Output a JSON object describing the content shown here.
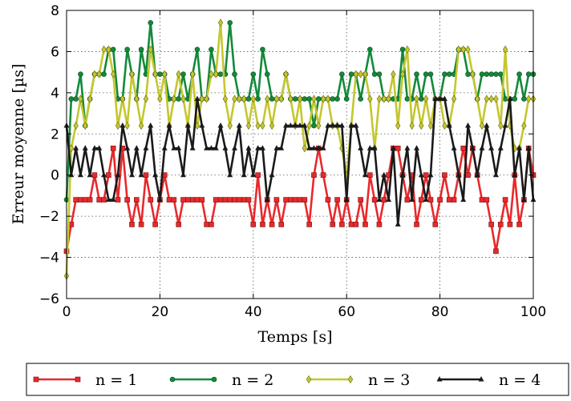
{
  "chart_data": {
    "type": "line",
    "xlabel": "Temps [s]",
    "ylabel": "Erreur moyenne [µs]",
    "xlim": [
      0,
      100
    ],
    "ylim": [
      -6,
      8
    ],
    "xticks": [
      0,
      20,
      40,
      60,
      80,
      100
    ],
    "yticks": [
      -6,
      -4,
      -2,
      0,
      2,
      4,
      6,
      8
    ],
    "xtick_labels": [
      "0",
      "20",
      "40",
      "60",
      "80",
      "100"
    ],
    "ytick_labels": [
      "−6",
      "−4",
      "−2",
      "0",
      "2",
      "4",
      "6",
      "8"
    ],
    "grid": true,
    "legend_position": "bottom",
    "x": [
      0,
      1,
      2,
      3,
      4,
      5,
      6,
      7,
      8,
      9,
      10,
      11,
      12,
      13,
      14,
      15,
      16,
      17,
      18,
      19,
      20,
      21,
      22,
      23,
      24,
      25,
      26,
      27,
      28,
      29,
      30,
      31,
      32,
      33,
      34,
      35,
      36,
      37,
      38,
      39,
      40,
      41,
      42,
      43,
      44,
      45,
      46,
      47,
      48,
      49,
      50,
      51,
      52,
      53,
      54,
      55,
      56,
      57,
      58,
      59,
      60,
      61,
      62,
      63,
      64,
      65,
      66,
      67,
      68,
      69,
      70,
      71,
      72,
      73,
      74,
      75,
      76,
      77,
      78,
      79,
      80,
      81,
      82,
      83,
      84,
      85,
      86,
      87,
      88,
      89,
      90,
      91,
      92,
      93,
      94,
      95,
      96,
      97,
      98,
      99,
      100
    ],
    "series": [
      {
        "name": "n = 1",
        "color": "#e8292b",
        "marker": "square",
        "values": [
          -3.7,
          -2.4,
          -1.2,
          -1.2,
          -1.2,
          -1.2,
          0,
          -1.2,
          -1.2,
          0,
          1.3,
          -1.2,
          1.3,
          -1.2,
          -2.4,
          -1.2,
          -2.4,
          0,
          -1.2,
          -2.4,
          -1.2,
          0,
          -1.2,
          -1.2,
          -2.4,
          -1.2,
          -1.2,
          -1.2,
          -1.2,
          -1.2,
          -2.4,
          -2.4,
          -1.2,
          -1.2,
          -1.2,
          -1.2,
          -1.2,
          -1.2,
          -1.2,
          -1.2,
          -2.4,
          0,
          -2.4,
          -1.2,
          -2.4,
          -1.2,
          -2.4,
          -1.2,
          -1.2,
          -1.2,
          -1.2,
          -1.2,
          -2.4,
          0,
          1.3,
          0,
          -1.2,
          -2.4,
          -1.2,
          -2.4,
          -1.2,
          -2.4,
          -2.4,
          -1.2,
          -2.4,
          0,
          -1.2,
          -2.4,
          -1.2,
          0,
          1.3,
          1.3,
          0,
          -1.2,
          0,
          -2.4,
          -1.2,
          0,
          -1.2,
          -2.4,
          -1.2,
          0,
          -1.2,
          -1.2,
          0,
          1.3,
          0,
          1.3,
          0,
          -1.2,
          -1.2,
          -2.4,
          -3.7,
          -2.4,
          -1.2,
          -2.4,
          0,
          -2.4,
          -1.2,
          1.3,
          0
        ]
      },
      {
        "name": "n = 2",
        "color": "#138a3a",
        "marker": "circle",
        "values": [
          -1.2,
          3.7,
          3.7,
          4.9,
          2.4,
          3.7,
          4.9,
          4.9,
          4.9,
          6.1,
          6.1,
          3.7,
          3.7,
          6.1,
          4.9,
          3.7,
          6.1,
          4.9,
          7.4,
          4.9,
          4.9,
          4.9,
          3.7,
          3.7,
          3.7,
          4.9,
          3.7,
          4.9,
          6.1,
          3.7,
          3.7,
          6.1,
          4.9,
          4.9,
          4.9,
          7.4,
          4.9,
          3.7,
          3.7,
          3.7,
          4.9,
          3.7,
          6.1,
          4.9,
          3.7,
          3.7,
          3.7,
          4.9,
          3.7,
          3.7,
          3.7,
          3.7,
          3.7,
          2.4,
          3.7,
          3.7,
          3.7,
          3.7,
          3.7,
          4.9,
          3.7,
          4.9,
          4.9,
          3.7,
          4.9,
          6.1,
          4.9,
          4.9,
          3.7,
          3.7,
          3.7,
          3.7,
          6.1,
          3.7,
          3.7,
          4.9,
          3.7,
          4.9,
          4.9,
          3.7,
          3.7,
          4.9,
          4.9,
          4.9,
          6.1,
          6.1,
          4.9,
          4.9,
          3.7,
          4.9,
          4.9,
          4.9,
          4.9,
          4.9,
          3.7,
          3.7,
          3.7,
          4.9,
          3.7,
          4.9,
          4.9
        ]
      },
      {
        "name": "n = 3",
        "color": "#c4c72f",
        "marker": "diamond",
        "values": [
          -4.9,
          1.3,
          2.4,
          3.7,
          2.4,
          3.7,
          4.9,
          4.9,
          6.1,
          6.1,
          4.9,
          2.4,
          3.7,
          2.4,
          4.9,
          3.7,
          2.4,
          3.7,
          6.1,
          4.9,
          3.7,
          4.9,
          2.4,
          3.7,
          4.9,
          3.7,
          2.4,
          4.9,
          2.4,
          3.7,
          3.7,
          4.9,
          4.9,
          7.4,
          3.7,
          2.4,
          3.7,
          3.7,
          3.7,
          2.4,
          3.7,
          2.4,
          2.4,
          3.7,
          2.4,
          3.7,
          3.7,
          4.9,
          3.7,
          2.4,
          3.7,
          1.3,
          2.4,
          3.7,
          2.4,
          3.7,
          3.7,
          2.4,
          2.4,
          1.3,
          0,
          2.4,
          4.9,
          4.9,
          4.9,
          3.7,
          1.3,
          3.7,
          3.7,
          3.7,
          4.9,
          2.4,
          4.9,
          6.1,
          2.4,
          3.7,
          2.4,
          3.7,
          2.4,
          3.7,
          3.7,
          2.4,
          2.4,
          3.7,
          6.1,
          6.1,
          6.1,
          4.9,
          3.7,
          2.4,
          3.7,
          3.7,
          3.7,
          2.4,
          6.1,
          2.4,
          1.3,
          1.3,
          2.4,
          3.7,
          3.7
        ]
      },
      {
        "name": "n = 4",
        "color": "#1a1a1a",
        "marker": "triangle",
        "values": [
          2.4,
          0,
          1.3,
          0,
          1.3,
          0,
          1.3,
          1.3,
          0,
          -1.2,
          -1.2,
          0,
          2.4,
          1.3,
          0,
          1.3,
          0,
          1.3,
          2.4,
          0,
          -1.2,
          1.3,
          2.4,
          1.3,
          1.3,
          0,
          2.4,
          1.3,
          3.7,
          2.4,
          1.3,
          1.3,
          1.3,
          2.4,
          1.3,
          0,
          1.3,
          2.4,
          0,
          1.3,
          0,
          1.3,
          1.3,
          -1.2,
          0,
          1.3,
          1.3,
          2.4,
          2.4,
          2.4,
          2.4,
          2.4,
          1.3,
          1.3,
          1.3,
          1.3,
          2.4,
          2.4,
          2.4,
          2.4,
          -1.2,
          2.4,
          2.4,
          1.3,
          0,
          1.3,
          1.3,
          -1.2,
          0,
          -1.2,
          1.3,
          -2.4,
          0,
          1.3,
          -1.2,
          1.3,
          0,
          -1.2,
          0,
          3.7,
          3.7,
          3.7,
          2.4,
          1.3,
          0,
          -1.2,
          2.4,
          1.3,
          0,
          1.3,
          2.4,
          1.3,
          0,
          1.3,
          2.4,
          3.7,
          0,
          1.3,
          -1.2,
          1.3,
          -1.2
        ]
      }
    ]
  }
}
